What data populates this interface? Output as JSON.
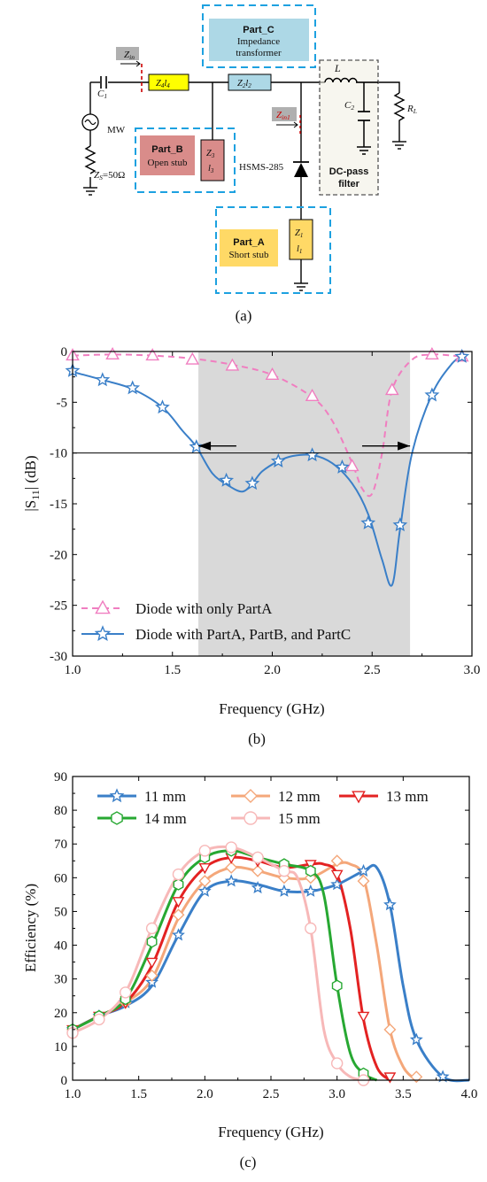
{
  "schematic": {
    "caption": "(a)",
    "part_c": {
      "title": "Part_C",
      "line1": "Impedance",
      "line2": "transformer"
    },
    "part_b": {
      "title": "Part_B",
      "line1": "Open stub"
    },
    "part_a": {
      "title": "Part_A",
      "line1": "Short stub"
    },
    "filter": {
      "line1": "DC-pass",
      "line2": "filter"
    },
    "labels": {
      "zin": "Z",
      "zin_sub": "in",
      "zin1": "Z",
      "zin1_sub": "in1",
      "c1": "C",
      "c1_sub": "1",
      "z4": "Z",
      "z4_sub": "4",
      "l4": "l",
      "l4_sub": "4",
      "z2": "Z",
      "z2_sub": "2",
      "l2": "l",
      "l2_sub": "2",
      "z3": "Z",
      "z3_sub": "3",
      "l3": "l",
      "l3_sub": "3",
      "z1": "Z",
      "z1_sub": "1",
      "l1": "l",
      "l1_sub": "1",
      "l": "L",
      "c2": "C",
      "c2_sub": "2",
      "rl": "R",
      "rl_sub": "L",
      "mw": "MW",
      "zs": "Z",
      "zs_sub": "S",
      "zs_val": "=50Ω",
      "diode": "HSMS-285"
    },
    "colors": {
      "part_c_fill": "#add8e6",
      "part_b_fill": "#d98c8a",
      "part_a_fill": "#ffd966",
      "z4_fill": "#ffff00",
      "dash_blue": "#1da1e0",
      "zin_grey": "#b0b0b0",
      "zin1_red": "#cc0000"
    }
  },
  "chart_data": [
    {
      "type": "line",
      "caption": "(b)",
      "xlabel": "Frequency (GHz)",
      "ylabel": "|S11| (dB)",
      "ylabel_main": "|S",
      "ylabel_sub": "11",
      "ylabel_rest": "| (dB)",
      "xlim": [
        1.0,
        3.0
      ],
      "ylim": [
        -30,
        0
      ],
      "xticks": [
        "1.0",
        "1.5",
        "2.0",
        "2.5",
        "3.0"
      ],
      "yticks": [
        "0",
        "-5",
        "-10",
        "-15",
        "-20",
        "-25",
        "-30"
      ],
      "shaded_band": [
        1.63,
        2.69
      ],
      "reference_line": -10,
      "arrows": [
        {
          "from": 1.82,
          "to": 1.63,
          "y": -9.3
        },
        {
          "from": 2.45,
          "to": 2.69,
          "y": -9.3
        }
      ],
      "series": [
        {
          "name": "Diode with only PartA",
          "color": "#f07ec0",
          "marker": "triangle",
          "dash": true,
          "x": [
            1.0,
            1.2,
            1.4,
            1.6,
            1.8,
            2.0,
            2.2,
            2.3,
            2.4,
            2.45,
            2.5,
            2.55,
            2.6,
            2.7,
            2.8,
            2.9,
            2.95
          ],
          "y": [
            -0.4,
            -0.3,
            -0.4,
            -0.7,
            -1.3,
            -2.3,
            -4.5,
            -6.8,
            -11.0,
            -13.5,
            -14.0,
            -10.0,
            -3.8,
            -0.8,
            -0.3,
            -0.4,
            -0.5
          ],
          "markers_x": [
            1.0,
            1.2,
            1.4,
            1.6,
            1.8,
            2.0,
            2.2,
            2.4,
            2.6,
            2.8,
            2.95
          ],
          "markers_y": [
            -0.4,
            -0.3,
            -0.4,
            -0.8,
            -1.4,
            -2.3,
            -4.4,
            -11.3,
            -3.8,
            -0.3,
            -0.5
          ]
        },
        {
          "name": "Diode with PartA, PartB, and PartC",
          "color": "#3a7fc8",
          "marker": "star",
          "dash": false,
          "x": [
            1.0,
            1.15,
            1.3,
            1.45,
            1.55,
            1.62,
            1.7,
            1.78,
            1.85,
            1.9,
            1.95,
            2.03,
            2.1,
            2.2,
            2.3,
            2.4,
            2.48,
            2.55,
            2.6,
            2.64,
            2.7,
            2.8,
            2.9,
            2.95
          ],
          "y": [
            -2.0,
            -2.8,
            -3.7,
            -5.5,
            -7.8,
            -9.4,
            -12.0,
            -13.2,
            -13.8,
            -13.0,
            -11.8,
            -10.8,
            -10.3,
            -10.2,
            -11.0,
            -13.0,
            -16.0,
            -20.5,
            -23.0,
            -17.5,
            -10.0,
            -4.2,
            -1.2,
            -0.5
          ],
          "markers_x": [
            1.0,
            1.15,
            1.3,
            1.45,
            1.62,
            1.77,
            1.9,
            2.03,
            2.2,
            2.35,
            2.48,
            2.64,
            2.8,
            2.95
          ],
          "markers_y": [
            -1.9,
            -2.8,
            -3.6,
            -5.5,
            -9.4,
            -12.7,
            -13.0,
            -10.8,
            -10.2,
            -11.4,
            -16.9,
            -17.1,
            -4.3,
            -0.5
          ]
        }
      ]
    },
    {
      "type": "line",
      "caption": "(c)",
      "xlabel": "Frequency (GHz)",
      "ylabel": "Efficiency (%)",
      "xlim": [
        1.0,
        4.0
      ],
      "ylim": [
        0,
        90
      ],
      "xticks": [
        "1.0",
        "1.5",
        "2.0",
        "2.5",
        "3.0",
        "3.5",
        "4.0"
      ],
      "yticks": [
        "0",
        "10",
        "20",
        "30",
        "40",
        "50",
        "60",
        "70",
        "80",
        "90"
      ],
      "series": [
        {
          "name": "11 mm",
          "color": "#3a7fc8",
          "marker": "star",
          "x": [
            1.0,
            1.2,
            1.4,
            1.6,
            1.8,
            2.0,
            2.2,
            2.4,
            2.6,
            2.8,
            3.0,
            3.2,
            3.3,
            3.4,
            3.5,
            3.6,
            3.8,
            4.0
          ],
          "y": [
            15,
            19,
            22,
            28,
            43,
            56,
            59,
            58,
            56,
            56,
            58,
            62,
            63,
            52,
            28,
            12,
            1,
            0
          ],
          "markers_x": [
            1.0,
            1.2,
            1.4,
            1.6,
            1.8,
            2.0,
            2.2,
            2.4,
            2.6,
            2.8,
            3.0,
            3.2,
            3.4,
            3.6,
            3.8
          ],
          "markers_y": [
            15,
            19,
            23,
            29,
            43,
            56,
            59,
            57,
            56,
            56,
            58,
            62,
            52,
            12,
            1
          ]
        },
        {
          "name": "12 mm",
          "color": "#f4a77a",
          "marker": "diamond",
          "x": [
            1.0,
            1.2,
            1.4,
            1.6,
            1.8,
            2.0,
            2.2,
            2.4,
            2.6,
            2.8,
            3.0,
            3.1,
            3.2,
            3.3,
            3.4,
            3.5,
            3.6
          ],
          "y": [
            15,
            19,
            23,
            30,
            48,
            59,
            63,
            62,
            60,
            60,
            64,
            64,
            60,
            40,
            15,
            4,
            0
          ],
          "markers_x": [
            1.0,
            1.2,
            1.4,
            1.6,
            1.8,
            2.0,
            2.2,
            2.4,
            2.6,
            2.8,
            3.0,
            3.2,
            3.4,
            3.6
          ],
          "markers_y": [
            15,
            19,
            23,
            31,
            49,
            59,
            63,
            62,
            60,
            60,
            65,
            59,
            15,
            1
          ]
        },
        {
          "name": "13 mm",
          "color": "#e32222",
          "marker": "triangle-down",
          "x": [
            1.0,
            1.2,
            1.4,
            1.6,
            1.8,
            2.0,
            2.2,
            2.4,
            2.6,
            2.8,
            2.9,
            3.0,
            3.1,
            3.2,
            3.3,
            3.4
          ],
          "y": [
            15,
            19,
            23,
            34,
            53,
            63,
            66,
            65,
            63,
            64,
            64,
            61,
            45,
            18,
            4,
            0
          ],
          "markers_x": [
            1.0,
            1.2,
            1.4,
            1.6,
            1.8,
            2.0,
            2.2,
            2.4,
            2.6,
            2.8,
            3.0,
            3.2,
            3.4
          ],
          "markers_y": [
            15,
            19,
            23,
            35,
            53,
            63,
            66,
            65,
            63,
            64,
            61,
            19,
            1
          ]
        },
        {
          "name": "14 mm",
          "color": "#27a832",
          "marker": "hexagon",
          "x": [
            1.0,
            1.2,
            1.4,
            1.6,
            1.8,
            2.0,
            2.2,
            2.4,
            2.6,
            2.8,
            2.9,
            3.0,
            3.1,
            3.2,
            3.3
          ],
          "y": [
            15,
            19,
            24,
            40,
            58,
            66,
            68,
            66,
            64,
            62,
            55,
            28,
            8,
            2,
            0
          ],
          "markers_x": [
            1.0,
            1.2,
            1.4,
            1.6,
            1.8,
            2.0,
            2.2,
            2.4,
            2.6,
            2.8,
            3.0,
            3.2
          ],
          "markers_y": [
            15,
            19,
            24,
            41,
            58,
            66,
            68,
            66,
            64,
            62,
            28,
            2
          ]
        },
        {
          "name": "15 mm",
          "color": "#f7b8b8",
          "marker": "circle",
          "x": [
            1.0,
            1.2,
            1.4,
            1.6,
            1.8,
            2.0,
            2.2,
            2.4,
            2.6,
            2.7,
            2.8,
            2.9,
            3.0,
            3.1,
            3.2
          ],
          "y": [
            14,
            18,
            26,
            45,
            61,
            68,
            69,
            66,
            62,
            60,
            45,
            15,
            5,
            1,
            0
          ],
          "markers_x": [
            1.0,
            1.2,
            1.4,
            1.6,
            1.8,
            2.0,
            2.2,
            2.4,
            2.6,
            2.8,
            3.0,
            3.2
          ],
          "markers_y": [
            14,
            18,
            26,
            45,
            61,
            68,
            69,
            66,
            62,
            45,
            5,
            0
          ]
        }
      ]
    }
  ]
}
